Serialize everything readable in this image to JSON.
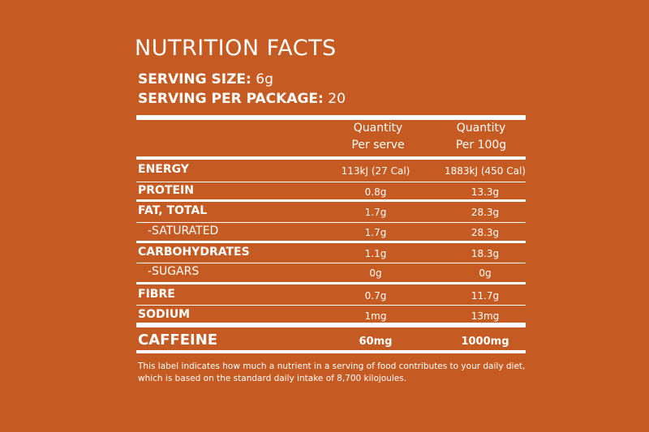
{
  "title": "NUTRITION FACTS",
  "serving": {
    "size_label": "SERVING SIZE:",
    "size_value": "6g",
    "per_package_label": "SERVING PER PACKAGE:",
    "per_package_value": "20"
  },
  "columns": {
    "col1_line1": "Quantity",
    "col1_line2": "Per serve",
    "col2_line1": "Quantity",
    "col2_line2": "Per 100g"
  },
  "rows": [
    {
      "name": "ENERGY",
      "per_serve": "113kJ (27 Cal)",
      "per_100g": "1883kJ (450 Cal)"
    },
    {
      "name": "PROTEIN",
      "per_serve": "0.8g",
      "per_100g": "13.3g"
    },
    {
      "name": "FAT, TOTAL",
      "per_serve": "1.7g",
      "per_100g": "28.3g"
    },
    {
      "name": "-SATURATED",
      "per_serve": "1.7g",
      "per_100g": "28.3g"
    },
    {
      "name": "CARBOHYDRATES",
      "per_serve": "1.1g",
      "per_100g": "18.3g"
    },
    {
      "name": "-SUGARS",
      "per_serve": "0g",
      "per_100g": "0g"
    },
    {
      "name": "FIBRE",
      "per_serve": "0.7g",
      "per_100g": "11.7g"
    },
    {
      "name": "SODIUM",
      "per_serve": "1mg",
      "per_100g": "13mg"
    }
  ],
  "caffeine": {
    "name": "CAFFEINE",
    "per_serve": "60mg",
    "per_100g": "1000mg"
  },
  "footnote": "This label indicates how much a nutrient in a serving of food contributes to your daily diet, which is based on the standard daily intake of 8,700 kilojoules.",
  "colors": {
    "background": "#c55a22",
    "text": "#ffffff"
  }
}
